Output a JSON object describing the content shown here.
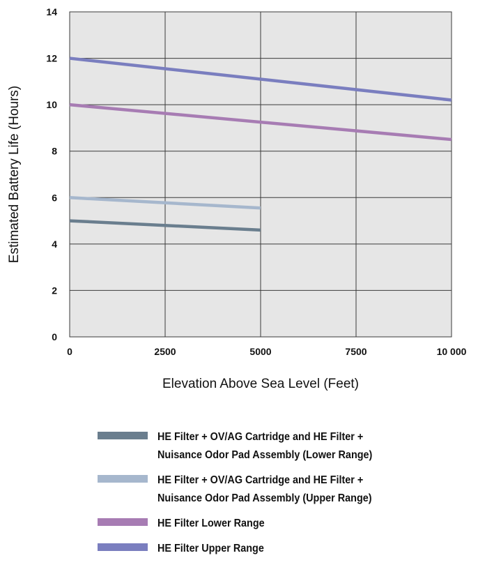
{
  "chart_data": {
    "type": "line",
    "xlabel": "Elevation Above Sea Level (Feet)",
    "ylabel": "Estimated Battery Life (Hours)",
    "xlim": [
      0,
      10000
    ],
    "ylim": [
      0,
      14
    ],
    "x_ticks": [
      "0",
      "2500",
      "5000",
      "7500",
      "10 000"
    ],
    "y_ticks": [
      "0",
      "2",
      "4",
      "6",
      "8",
      "10",
      "12",
      "14"
    ],
    "x_tick_values": [
      0,
      2500,
      5000,
      7500,
      10000
    ],
    "y_tick_values": [
      0,
      2,
      4,
      6,
      8,
      10,
      12,
      14
    ],
    "grid": true,
    "background": "#e6e6e6",
    "legend_position": "bottom",
    "series": [
      {
        "name": "HE Filter + OV/AG Cartridge and HE Filter +\nNuisance Odor Pad Assembly (Lower Range)",
        "color": "#6a7e8e",
        "x": [
          0,
          5000
        ],
        "y": [
          5.0,
          4.6
        ]
      },
      {
        "name": "HE Filter + OV/AG Cartridge and HE Filter +\nNuisance Odor Pad Assembly (Upper Range)",
        "color": "#a6b7cd",
        "x": [
          0,
          5000
        ],
        "y": [
          6.0,
          5.55
        ]
      },
      {
        "name": "HE Filter Lower Range",
        "color": "#a77cb3",
        "x": [
          0,
          10000
        ],
        "y": [
          10.0,
          8.5
        ]
      },
      {
        "name": "HE Filter Upper Range",
        "color": "#7a7ebf",
        "x": [
          0,
          10000
        ],
        "y": [
          12.0,
          10.2
        ]
      }
    ]
  }
}
